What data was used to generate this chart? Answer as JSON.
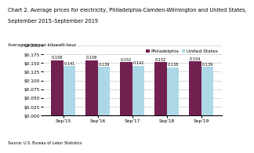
{
  "title_line1": "Chart 2. Average prices for electricity, Philadelphia-Camden-Wilmington and United States,",
  "title_line2": "September 2015–September 2019",
  "ylabel": "Average price per kilowatt-hour",
  "categories": [
    "Sep'15",
    "Sep'16",
    "Sep'17",
    "Sep'18",
    "Sep'19"
  ],
  "philadelphia": [
    0.158,
    0.158,
    0.152,
    0.152,
    0.154
  ],
  "united_states": [
    0.141,
    0.139,
    0.142,
    0.138,
    0.139
  ],
  "philly_color": "#722050",
  "us_color": "#add8e6",
  "ylim": [
    0.0,
    0.2
  ],
  "yticks": [
    0.0,
    0.025,
    0.05,
    0.075,
    0.1,
    0.125,
    0.15,
    0.175,
    0.2
  ],
  "source": "Source: U.S. Bureau of Labor Statistics",
  "legend_labels": [
    "Philadelphia",
    "United States"
  ],
  "bar_width": 0.35,
  "title_fontsize": 4.8,
  "label_fontsize": 4.0,
  "tick_fontsize": 4.2,
  "value_fontsize": 3.6,
  "legend_fontsize": 4.2,
  "source_fontsize": 3.5,
  "grid_color": "#cccccc",
  "background_color": "#ffffff"
}
